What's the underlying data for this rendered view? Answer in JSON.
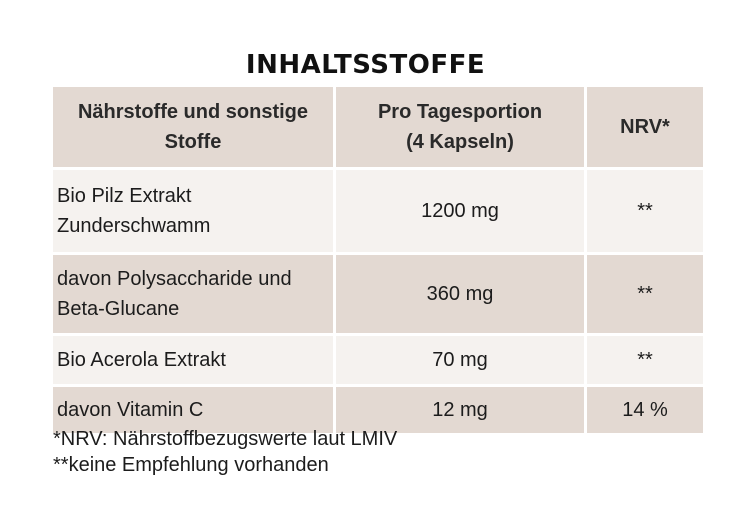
{
  "title": "INHALTSSTOFFE",
  "table": {
    "headers": [
      {
        "line1": "Nährstoffe und sonstige",
        "line2": "Stoffe"
      },
      {
        "line1": "Pro Tagesportion",
        "line2": "(4 Kapseln)"
      },
      {
        "line1": "NRV*",
        "line2": ""
      }
    ],
    "rows": [
      {
        "name_line1": "Bio Pilz Extrakt",
        "name_line2": "Zunderschwamm",
        "amount": "1200 mg",
        "nrv": "**"
      },
      {
        "name_line1": "davon Polysaccharide und",
        "name_line2": "Beta-Glucane",
        "amount": "360 mg",
        "nrv": "**"
      },
      {
        "name_line1": "Bio Acerola Extrakt",
        "name_line2": "",
        "amount": "70 mg",
        "nrv": "**"
      },
      {
        "name_line1": "davon Vitamin C",
        "name_line2": "",
        "amount": "12 mg",
        "nrv": "14 %"
      }
    ]
  },
  "footnotes": [
    "*NRV: Nährstoffbezugswerte laut LMIV",
    "**keine Empfehlung vorhanden"
  ],
  "colors": {
    "header_bg": "#e3d9d2",
    "row_light_bg": "#f5f2ef",
    "row_dark_bg": "#e3d9d2"
  }
}
